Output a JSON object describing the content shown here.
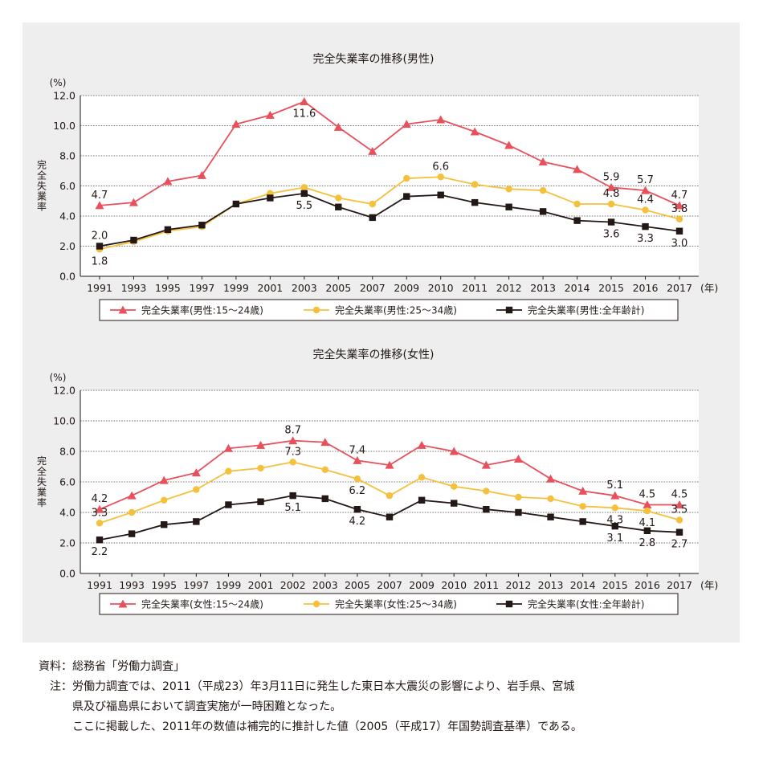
{
  "chart_data": [
    {
      "type": "line",
      "title": "完全失業率の推移(男性)",
      "ylabel": "完全失業率",
      "y_unit": "(%)",
      "x_unit": "(年)",
      "ylim": [
        0,
        12
      ],
      "y_ticks": [
        "0.0",
        "2.0",
        "4.0",
        "6.0",
        "8.0",
        "10.0",
        "12.0"
      ],
      "grid": true,
      "legend_position": "bottom",
      "categories": [
        "1991",
        "1993",
        "1995",
        "1997",
        "1999",
        "2001",
        "2003",
        "2005",
        "2007",
        "2009",
        "2010",
        "2011",
        "2012",
        "2013",
        "2014",
        "2015",
        "2016",
        "2017"
      ],
      "series": [
        {
          "name": "完全失業率(男性:15～24歳)",
          "color": "#e8505b",
          "marker": "triangle",
          "values": [
            4.7,
            4.9,
            6.3,
            6.7,
            10.1,
            10.7,
            11.6,
            9.9,
            8.3,
            10.1,
            10.4,
            9.6,
            8.7,
            7.6,
            7.1,
            5.9,
            5.7,
            4.7
          ]
        },
        {
          "name": "完全失業率(男性:25～34歳)",
          "color": "#f5c03b",
          "marker": "circle",
          "values": [
            1.8,
            2.3,
            3.0,
            3.3,
            4.8,
            5.5,
            5.9,
            5.2,
            4.8,
            6.5,
            6.6,
            6.1,
            5.8,
            5.7,
            4.8,
            4.8,
            4.4,
            3.8
          ]
        },
        {
          "name": "完全失業率(男性:全年齢計)",
          "color": "#231815",
          "marker": "square",
          "values": [
            2.0,
            2.4,
            3.1,
            3.4,
            4.8,
            5.2,
            5.5,
            4.6,
            3.9,
            5.3,
            5.4,
            4.9,
            4.6,
            4.3,
            3.7,
            3.6,
            3.3,
            3.0
          ]
        }
      ],
      "annotations": [
        {
          "text": "4.7",
          "series": 0,
          "index": 0,
          "pos": "above"
        },
        {
          "text": "11.6",
          "series": 0,
          "index": 6,
          "pos": "below"
        },
        {
          "text": "5.9",
          "series": 0,
          "index": 15,
          "pos": "above"
        },
        {
          "text": "5.7",
          "series": 0,
          "index": 16,
          "pos": "above"
        },
        {
          "text": "4.7",
          "series": 0,
          "index": 17,
          "pos": "above"
        },
        {
          "text": "6.6",
          "series": 1,
          "index": 10,
          "pos": "above"
        },
        {
          "text": "1.8",
          "series": 1,
          "index": 0,
          "pos": "below"
        },
        {
          "text": "4.8",
          "series": 1,
          "index": 15,
          "pos": "above"
        },
        {
          "text": "4.4",
          "series": 1,
          "index": 16,
          "pos": "above"
        },
        {
          "text": "3.8",
          "series": 1,
          "index": 17,
          "pos": "above"
        },
        {
          "text": "2.0",
          "series": 2,
          "index": 0,
          "pos": "above"
        },
        {
          "text": "5.5",
          "series": 2,
          "index": 6,
          "pos": "below"
        },
        {
          "text": "3.6",
          "series": 2,
          "index": 15,
          "pos": "below"
        },
        {
          "text": "3.3",
          "series": 2,
          "index": 16,
          "pos": "below"
        },
        {
          "text": "3.0",
          "series": 2,
          "index": 17,
          "pos": "below"
        }
      ]
    },
    {
      "type": "line",
      "title": "完全失業率の推移(女性)",
      "ylabel": "完全失業率",
      "y_unit": "(%)",
      "x_unit": "(年)",
      "ylim": [
        0,
        12
      ],
      "y_ticks": [
        "0.0",
        "2.0",
        "4.0",
        "6.0",
        "8.0",
        "10.0",
        "12.0"
      ],
      "grid": true,
      "legend_position": "bottom",
      "categories": [
        "1991",
        "1993",
        "1995",
        "1997",
        "1999",
        "2001",
        "2002",
        "2003",
        "2005",
        "2007",
        "2009",
        "2010",
        "2011",
        "2012",
        "2013",
        "2014",
        "2015",
        "2016",
        "2017"
      ],
      "series": [
        {
          "name": "完全失業率(女性:15～24歳)",
          "color": "#e8505b",
          "marker": "triangle",
          "values": [
            4.2,
            5.1,
            6.1,
            6.6,
            8.2,
            8.4,
            8.7,
            8.6,
            7.4,
            7.1,
            8.4,
            8.0,
            7.1,
            7.5,
            6.2,
            5.4,
            5.1,
            4.5,
            4.5
          ]
        },
        {
          "name": "完全失業率(女性:25～34歳)",
          "color": "#f5c03b",
          "marker": "circle",
          "values": [
            3.3,
            4.0,
            4.8,
            5.5,
            6.7,
            6.9,
            7.3,
            6.8,
            6.2,
            5.1,
            6.3,
            5.7,
            5.4,
            5.0,
            4.9,
            4.4,
            4.3,
            4.1,
            3.5
          ]
        },
        {
          "name": "完全失業率(女性:全年齢計)",
          "color": "#231815",
          "marker": "square",
          "values": [
            2.2,
            2.6,
            3.2,
            3.4,
            4.5,
            4.7,
            5.1,
            4.9,
            4.2,
            3.7,
            4.8,
            4.6,
            4.2,
            4.0,
            3.7,
            3.4,
            3.1,
            2.8,
            2.7
          ]
        }
      ],
      "annotations": [
        {
          "text": "4.2",
          "series": 0,
          "index": 0,
          "pos": "above"
        },
        {
          "text": "8.7",
          "series": 0,
          "index": 6,
          "pos": "above"
        },
        {
          "text": "7.4",
          "series": 0,
          "index": 8,
          "pos": "above"
        },
        {
          "text": "5.1",
          "series": 0,
          "index": 16,
          "pos": "above"
        },
        {
          "text": "4.5",
          "series": 0,
          "index": 17,
          "pos": "above"
        },
        {
          "text": "4.5",
          "series": 0,
          "index": 18,
          "pos": "above"
        },
        {
          "text": "3.3",
          "series": 1,
          "index": 0,
          "pos": "above"
        },
        {
          "text": "7.3",
          "series": 1,
          "index": 6,
          "pos": "above"
        },
        {
          "text": "6.2",
          "series": 1,
          "index": 8,
          "pos": "below"
        },
        {
          "text": "4.3",
          "series": 1,
          "index": 16,
          "pos": "below"
        },
        {
          "text": "4.1",
          "series": 1,
          "index": 17,
          "pos": "below"
        },
        {
          "text": "3.5",
          "series": 1,
          "index": 18,
          "pos": "above"
        },
        {
          "text": "2.2",
          "series": 2,
          "index": 0,
          "pos": "below"
        },
        {
          "text": "5.1",
          "series": 2,
          "index": 6,
          "pos": "below"
        },
        {
          "text": "4.2",
          "series": 2,
          "index": 8,
          "pos": "below"
        },
        {
          "text": "3.1",
          "series": 2,
          "index": 16,
          "pos": "below"
        },
        {
          "text": "2.8",
          "series": 2,
          "index": 17,
          "pos": "below"
        },
        {
          "text": "2.7",
          "series": 2,
          "index": 18,
          "pos": "below"
        }
      ]
    }
  ],
  "footer": {
    "source_label": "資料：",
    "source_text": "総務省「労働力調査」",
    "note_label": "注：",
    "note_line1": "労働力調査では、2011（平成23）年3月11日に発生した東日本大震災の影響により、岩手県、宮城",
    "note_line2": "県及び福島県において調査実施が一時困難となった。",
    "note_line3": "ここに掲載した、2011年の数値は補完的に推計した値（2005（平成17）年国勢調査基準）である。"
  }
}
